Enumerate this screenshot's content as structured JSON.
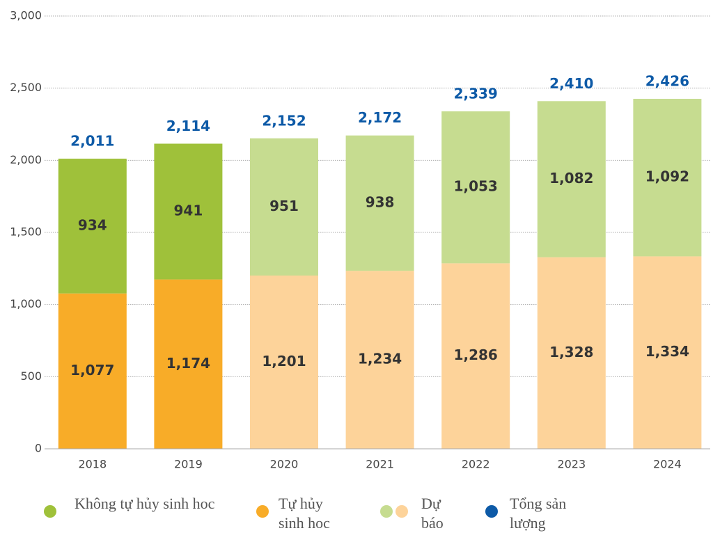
{
  "chart_data": {
    "type": "stacked_bar",
    "categories": [
      "2018",
      "2019",
      "2020",
      "2021",
      "2022",
      "2023",
      "2024"
    ],
    "series": [
      {
        "name": "Tự hủy sinh hoc",
        "color": "#f8ac28",
        "forecast_color": "#fdd39a",
        "values": [
          1077,
          1174,
          1201,
          1234,
          1286,
          1328,
          1334
        ],
        "value_labels": [
          "1,077",
          "1,174",
          "1,201",
          "1,234",
          "1,286",
          "1,328",
          "1,334"
        ]
      },
      {
        "name": "Không tự hủy sinh hoc",
        "color": "#9fc13a",
        "forecast_color": "#c6dc90",
        "values": [
          934,
          941,
          951,
          938,
          1053,
          1082,
          1092
        ],
        "value_labels": [
          "934",
          "941",
          "951",
          "938",
          "1,053",
          "1,082",
          "1,092"
        ]
      }
    ],
    "totals": {
      "name": "Tổng sản lượng",
      "color": "#0d5aa7",
      "values": [
        2011,
        2114,
        2152,
        2172,
        2339,
        2410,
        2426
      ],
      "value_labels": [
        "2,011",
        "2,114",
        "2,152",
        "2,172",
        "2,339",
        "2,410",
        "2,426"
      ]
    },
    "forecast": {
      "name": "Dự báo",
      "start": "2020"
    },
    "ylim": [
      0,
      3000
    ],
    "yticks": [
      0,
      500,
      {
        "value": 1000,
        "label": "1,000"
      },
      {
        "value": 1500,
        "label": "1,500"
      },
      {
        "value": 2000,
        "label": "2,000"
      },
      {
        "value": 2500,
        "label": "2,500"
      },
      {
        "value": 3000,
        "label": "3,000"
      }
    ],
    "grid": true
  }
}
